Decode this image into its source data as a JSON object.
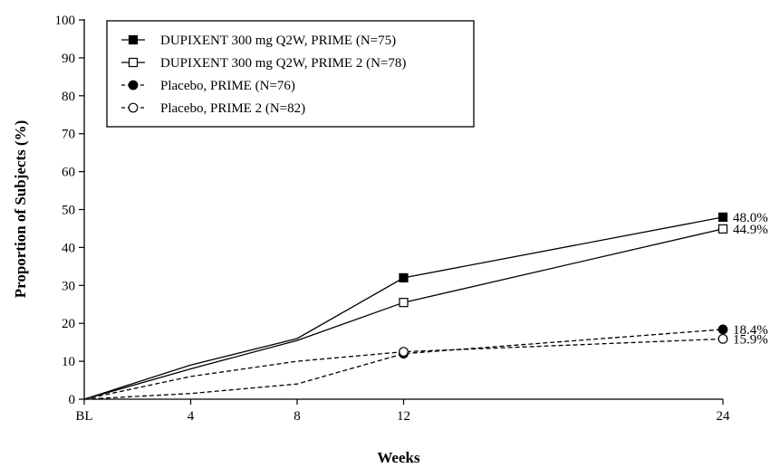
{
  "chart_data": {
    "type": "line",
    "title": "",
    "xlabel": "Weeks",
    "ylabel": "Proportion of Subjects (%)",
    "x": [
      0,
      4,
      8,
      12,
      24
    ],
    "xtick_labels": [
      "BL",
      "4",
      "8",
      "12",
      "24"
    ],
    "ylim": [
      0,
      100
    ],
    "yticks": [
      0,
      10,
      20,
      30,
      40,
      50,
      60,
      70,
      80,
      90,
      100
    ],
    "grid": false,
    "legend_position": "top-left",
    "series": [
      {
        "name": "DUPIXENT 300 mg Q2W, PRIME (N=75)",
        "values": [
          0,
          9,
          16,
          32,
          48.0
        ],
        "line": "solid",
        "marker": "square-filled",
        "end_label": "48.0%"
      },
      {
        "name": "DUPIXENT 300 mg Q2W, PRIME 2 (N=78)",
        "values": [
          0,
          8,
          15.5,
          25.5,
          44.9
        ],
        "line": "solid",
        "marker": "square-open",
        "end_label": "44.9%"
      },
      {
        "name": "Placebo, PRIME (N=76)",
        "values": [
          0,
          1.5,
          4,
          12,
          18.4
        ],
        "line": "dashed",
        "marker": "circle-filled",
        "end_label": "18.4%"
      },
      {
        "name": "Placebo, PRIME 2 (N=82)",
        "values": [
          0,
          6,
          10,
          12.5,
          15.9
        ],
        "line": "dashed",
        "marker": "circle-open",
        "end_label": "15.9%"
      }
    ]
  }
}
